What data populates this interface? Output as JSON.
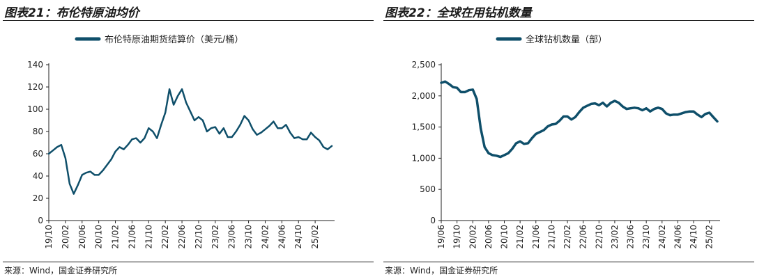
{
  "panels": [
    {
      "title": "图表21：布伦特原油均价",
      "source": "来源：Wind，国金证券研究所"
    },
    {
      "title": "图表22：全球在用钻机数量",
      "source": "来源：Wind，国金证券研究所"
    }
  ],
  "colors": {
    "line": "#0f4f6a",
    "axis": "#222222"
  },
  "chart_data": [
    {
      "type": "line",
      "series": [
        {
          "name": "布伦特原油期货结算价（美元/桶）",
          "x": [
            "2019-10",
            "2019-11",
            "2019-12",
            "2020-01",
            "2020-02",
            "2020-03",
            "2020-04",
            "2020-05",
            "2020-06",
            "2020-07",
            "2020-08",
            "2020-09",
            "2020-10",
            "2020-11",
            "2020-12",
            "2021-01",
            "2021-02",
            "2021-03",
            "2021-04",
            "2021-05",
            "2021-06",
            "2021-07",
            "2021-08",
            "2021-09",
            "2021-10",
            "2021-11",
            "2021-12",
            "2022-01",
            "2022-02",
            "2022-03",
            "2022-04",
            "2022-05",
            "2022-06",
            "2022-07",
            "2022-08",
            "2022-09",
            "2022-10",
            "2022-11",
            "2022-12",
            "2023-01",
            "2023-02",
            "2023-03",
            "2023-04",
            "2023-05",
            "2023-06",
            "2023-07",
            "2023-08",
            "2023-09",
            "2023-10",
            "2023-11",
            "2023-12",
            "2024-01",
            "2024-02",
            "2024-03",
            "2024-04",
            "2024-05",
            "2024-06",
            "2024-07",
            "2024-08",
            "2024-09",
            "2024-10",
            "2024-11",
            "2024-12",
            "2025-01",
            "2025-02",
            "2025-03",
            "2025-04",
            "2025-05",
            "2025-06"
          ],
          "values": [
            60,
            63,
            66,
            68,
            56,
            33,
            24,
            32,
            41,
            43,
            44,
            41,
            41,
            45,
            50,
            55,
            62,
            66,
            64,
            68,
            73,
            74,
            70,
            74,
            83,
            80,
            74,
            86,
            97,
            118,
            104,
            112,
            118,
            106,
            98,
            90,
            93,
            90,
            80,
            83,
            84,
            78,
            83,
            75,
            75,
            80,
            86,
            94,
            90,
            82,
            77,
            79,
            82,
            85,
            89,
            83,
            83,
            86,
            79,
            74,
            75,
            73,
            73,
            79,
            75,
            72,
            66,
            64,
            67
          ]
        }
      ],
      "ylim": [
        0,
        140
      ],
      "yticks": [
        0,
        20,
        40,
        60,
        80,
        100,
        120,
        140
      ],
      "xtick_labels": [
        "19/10",
        "20/02",
        "20/06",
        "20/10",
        "21/02",
        "21/06",
        "21/10",
        "22/02",
        "22/06",
        "22/10",
        "23/02",
        "23/06",
        "23/10",
        "24/02",
        "24/06",
        "24/10",
        "25/02"
      ],
      "legend_position": "top-center"
    },
    {
      "type": "line",
      "series": [
        {
          "name": "全球钻机数量（部）",
          "x": [
            "2019-06",
            "2019-07",
            "2019-08",
            "2019-09",
            "2019-10",
            "2019-11",
            "2019-12",
            "2020-01",
            "2020-02",
            "2020-03",
            "2020-04",
            "2020-05",
            "2020-06",
            "2020-07",
            "2020-08",
            "2020-09",
            "2020-10",
            "2020-11",
            "2020-12",
            "2021-01",
            "2021-02",
            "2021-03",
            "2021-04",
            "2021-05",
            "2021-06",
            "2021-07",
            "2021-08",
            "2021-09",
            "2021-10",
            "2021-11",
            "2021-12",
            "2022-01",
            "2022-02",
            "2022-03",
            "2022-04",
            "2022-05",
            "2022-06",
            "2022-07",
            "2022-08",
            "2022-09",
            "2022-10",
            "2022-11",
            "2022-12",
            "2023-01",
            "2023-02",
            "2023-03",
            "2023-04",
            "2023-05",
            "2023-06",
            "2023-07",
            "2023-08",
            "2023-09",
            "2023-10",
            "2023-11",
            "2023-12",
            "2024-01",
            "2024-02",
            "2024-03",
            "2024-04",
            "2024-05",
            "2024-06",
            "2024-07",
            "2024-08",
            "2024-09",
            "2024-10",
            "2024-11",
            "2024-12",
            "2025-01",
            "2025-02",
            "2025-03",
            "2025-04"
          ],
          "values": [
            2210,
            2230,
            2190,
            2140,
            2130,
            2060,
            2060,
            2090,
            2100,
            1950,
            1480,
            1180,
            1080,
            1050,
            1040,
            1020,
            1050,
            1080,
            1150,
            1240,
            1270,
            1230,
            1240,
            1320,
            1390,
            1420,
            1450,
            1510,
            1540,
            1550,
            1600,
            1670,
            1670,
            1620,
            1660,
            1740,
            1810,
            1840,
            1870,
            1880,
            1850,
            1890,
            1830,
            1890,
            1920,
            1890,
            1830,
            1790,
            1800,
            1810,
            1800,
            1770,
            1800,
            1750,
            1790,
            1810,
            1790,
            1720,
            1690,
            1700,
            1700,
            1720,
            1740,
            1750,
            1750,
            1700,
            1660,
            1710,
            1730,
            1660,
            1590
          ]
        }
      ],
      "ylim": [
        0,
        2500
      ],
      "yticks": [
        "0",
        "500",
        "1,000",
        "1,500",
        "2,000",
        "2,500"
      ],
      "xtick_labels": [
        "19/06",
        "19/10",
        "20/02",
        "20/06",
        "20/10",
        "21/02",
        "21/06",
        "21/10",
        "22/02",
        "22/06",
        "22/10",
        "23/02",
        "23/06",
        "23/10",
        "24/02",
        "24/06",
        "24/10",
        "25/02"
      ],
      "legend_position": "top-center"
    }
  ]
}
